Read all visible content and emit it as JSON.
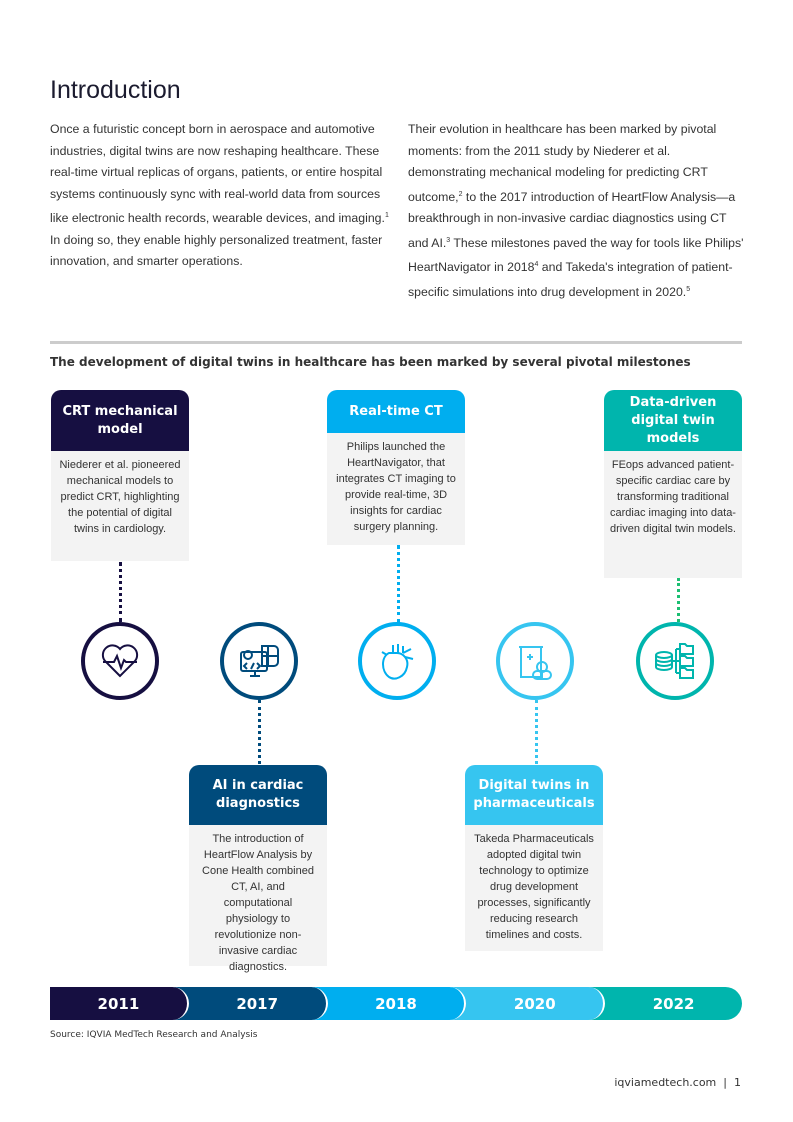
{
  "title": "Introduction",
  "paragraphs": {
    "left": [
      "Once a futuristic concept born in aerospace and automotive industries, digital twins are now reshaping healthcare. These real-time virtual replicas of organs, patients, or entire hospital systems continuously sync with real-world data from sources like electronic health records, wearable devices, and imaging.",
      "1",
      " In doing so, they enable highly personalized treatment, faster innovation, and smarter operations."
    ],
    "right": [
      "Their evolution in healthcare has been marked by pivotal moments: from the 2011 study by Niederer et al. demonstrating mechanical modeling for predicting CRT outcome,",
      "2",
      " to the 2017 introduction of HeartFlow Analysis—a breakthrough in non-invasive cardiac diagnostics using CT and AI.",
      "3",
      " These milestones paved the way for tools like Philips' HeartNavigator in 2018",
      "4",
      " and Takeda's integration of patient-specific simulations into drug development in 2020.",
      "5"
    ]
  },
  "figure_title": "The development of digital twins in healthcare has been marked by several pivotal milestones",
  "milestones": [
    {
      "year": "2011",
      "title": "CRT mechanical model",
      "text": "Niederer et al. pioneered mechanical models to predict CRT, highlighting the potential of digital twins in cardiology.",
      "icon": "heart-pulse-icon",
      "color": "#160f41"
    },
    {
      "year": "2017",
      "title": "AI in cardiac diagnostics",
      "text": "The introduction of HeartFlow Analysis by Cone Health combined CT, AI, and computational physiology to revolutionize non-invasive cardiac diagnostics.",
      "icon": "ai-brain-computer-icon",
      "color": "#004b7c"
    },
    {
      "year": "2018",
      "title": "Real-time CT",
      "text": "Philips launched the HeartNavigator, that integrates CT imaging to provide real-time, 3D insights for cardiac surgery planning.",
      "icon": "anatomical-heart-icon",
      "color": "#00aeef"
    },
    {
      "year": "2020",
      "title": "Digital twins in pharmaceuticals",
      "text": "Takeda Pharmaceuticals adopted digital twin technology to optimize drug development processes, significantly reducing research timelines and costs.",
      "icon": "medicine-pills-icon",
      "color": "#36c5f0"
    },
    {
      "year": "2022",
      "title": "Data-driven digital twin models",
      "text": "FEops advanced patient-specific cardiac care by transforming traditional cardiac imaging into data-driven digital twin models.",
      "icon": "database-folders-icon",
      "color": "#00b5ad"
    }
  ],
  "source": "Source: IQVIA MedTech Research and Analysis",
  "footer": {
    "site": "iqviamedtech.com",
    "separator": "|",
    "page": "1"
  }
}
